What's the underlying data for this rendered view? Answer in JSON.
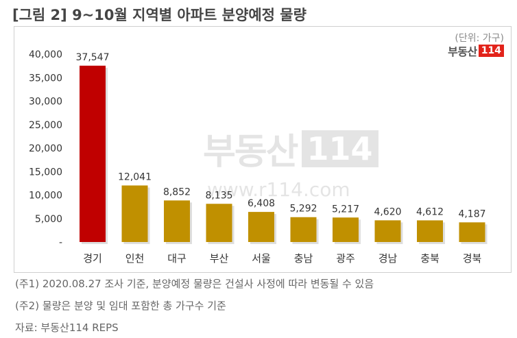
{
  "title": "[그림 2] 9~10월 지역별 아파트 분양예정 물량",
  "unit_label": "(단위: 가구)",
  "logo": {
    "text": "부동산",
    "badge": "114"
  },
  "watermark": {
    "text": "부동산",
    "badge": "114",
    "url": "www.r114.com"
  },
  "notes": [
    "(주1) 2020.08.27 조사 기준, 분양예정 물량은 건설사 사정에 따라 변동될 수 있음",
    "(주2) 물량은 분양 및 임대 포함한 총 가구수 기준",
    "자료: 부동산114 REPS"
  ],
  "colors": {
    "highlight": "#c00000",
    "bar": "#c09000",
    "bar_shadow": "#a0a0a0"
  },
  "chart_data": {
    "type": "bar",
    "categories": [
      "경기",
      "인천",
      "대구",
      "부산",
      "서울",
      "충남",
      "광주",
      "경남",
      "충북",
      "경북"
    ],
    "values": [
      37547,
      12041,
      8852,
      8135,
      6408,
      5292,
      5217,
      4620,
      4612,
      4187
    ],
    "value_labels": [
      "37,547",
      "12,041",
      "8,852",
      "8,135",
      "6,408",
      "5,292",
      "5,217",
      "4,620",
      "4,612",
      "4,187"
    ],
    "yticks": [
      0,
      5000,
      10000,
      15000,
      20000,
      25000,
      30000,
      35000,
      40000
    ],
    "ytick_labels": [
      "-",
      "5,000",
      "10,000",
      "15,000",
      "20,000",
      "25,000",
      "30,000",
      "35,000",
      "40,000"
    ],
    "ylim": [
      0,
      40000
    ],
    "highlight_index": 0,
    "grid": false,
    "title": "",
    "xlabel": "",
    "ylabel": ""
  }
}
